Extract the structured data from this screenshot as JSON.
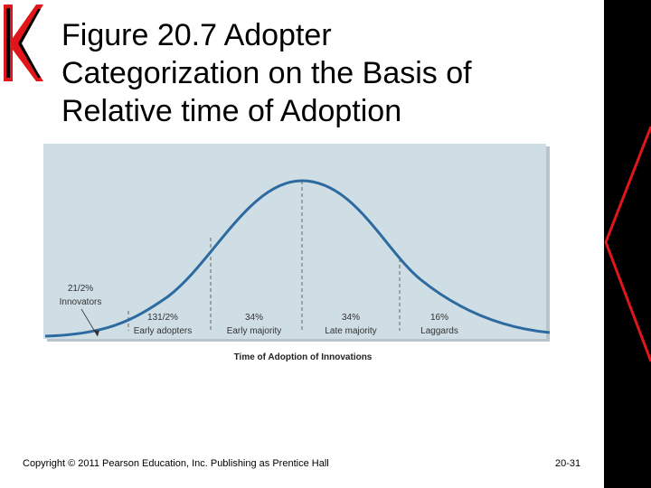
{
  "slide": {
    "title_lines": [
      "Figure 20.7 Adopter",
      "Categorization on the Basis of",
      "Relative time of Adoption"
    ],
    "copyright": "Copyright © 2011 Pearson Education, Inc.  Publishing as Prentice Hall",
    "page_number": "20-31",
    "logo_letter": "K"
  },
  "figure": {
    "caption": "Time of Adoption of Innovations",
    "segments": [
      {
        "percent": "21/2%",
        "label": "Innovators"
      },
      {
        "percent": "131/2%",
        "label": "Early adopters"
      },
      {
        "percent": "34%",
        "label": "Early majority"
      },
      {
        "percent": "34%",
        "label": "Late majority"
      },
      {
        "percent": "16%",
        "label": "Laggards"
      }
    ],
    "colors": {
      "panel": "#cfdde4",
      "curve": "#2d6aa0",
      "divider": "#666666",
      "accent_red": "#e0161b"
    }
  }
}
